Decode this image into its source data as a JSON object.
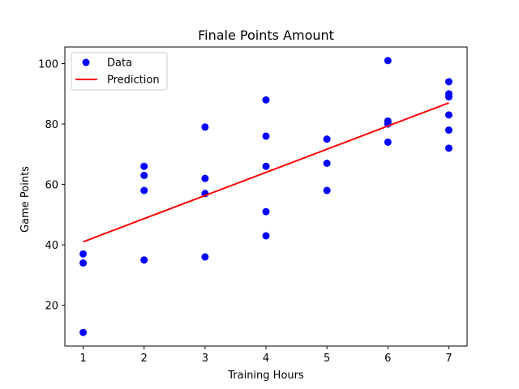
{
  "chart_data": {
    "type": "scatter",
    "title": "Finale Points Amount",
    "xlabel": "Training Hours",
    "ylabel": "Game Points",
    "xlim": [
      0.7,
      7.3
    ],
    "ylim": [
      6.5,
      105.5
    ],
    "x_ticks": [
      1,
      2,
      3,
      4,
      5,
      6,
      7
    ],
    "y_ticks": [
      20,
      40,
      60,
      80,
      100
    ],
    "grid": false,
    "legend_position": "top-left",
    "series": [
      {
        "name": "Data",
        "kind": "scatter",
        "color": "#0000ff",
        "points": [
          [
            1,
            11
          ],
          [
            1,
            34
          ],
          [
            1,
            37
          ],
          [
            2,
            35
          ],
          [
            2,
            58
          ],
          [
            2,
            63
          ],
          [
            2,
            66
          ],
          [
            3,
            36
          ],
          [
            3,
            57
          ],
          [
            3,
            62
          ],
          [
            3,
            79
          ],
          [
            4,
            43
          ],
          [
            4,
            51
          ],
          [
            4,
            66
          ],
          [
            4,
            76
          ],
          [
            4,
            88
          ],
          [
            5,
            58
          ],
          [
            5,
            67
          ],
          [
            5,
            75
          ],
          [
            6,
            74
          ],
          [
            6,
            80
          ],
          [
            6,
            81
          ],
          [
            6,
            101
          ],
          [
            7,
            72
          ],
          [
            7,
            78
          ],
          [
            7,
            83
          ],
          [
            7,
            89
          ],
          [
            7,
            90
          ],
          [
            7,
            94
          ]
        ]
      },
      {
        "name": "Prediction",
        "kind": "line",
        "color": "#ff0000",
        "points": [
          [
            1,
            41
          ],
          [
            7,
            87
          ]
        ]
      }
    ]
  }
}
